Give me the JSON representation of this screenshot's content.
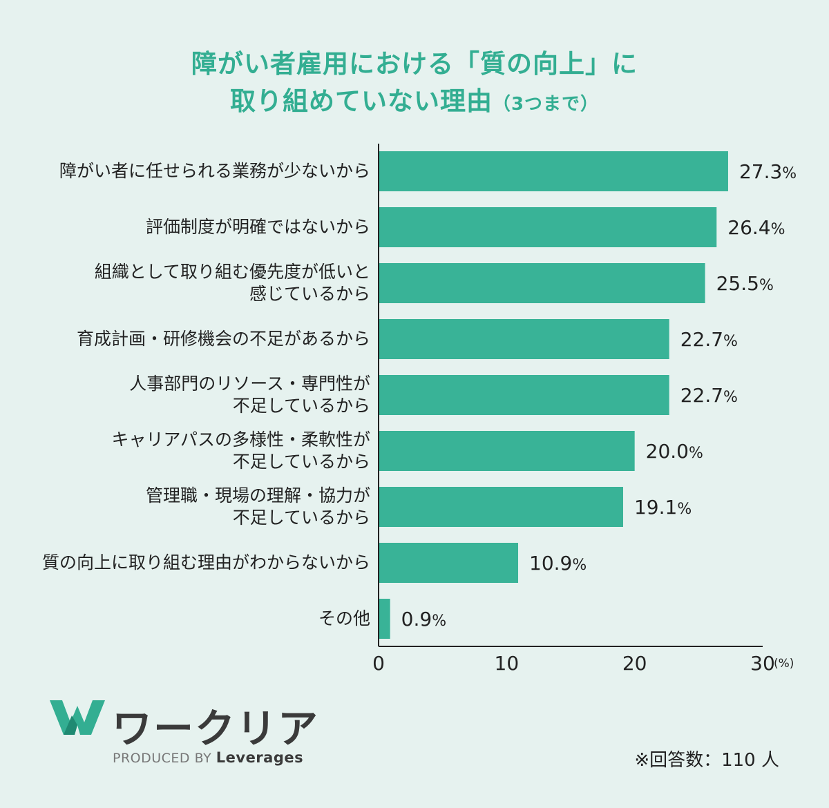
{
  "title": {
    "line1": "障がい者雇用における「質の向上」に",
    "line2": "取り組めていない理由",
    "note": "（3つまで）"
  },
  "colors": {
    "background": "#e6f2ef",
    "accent": "#33ae92",
    "bar": "#39b397",
    "text": "#222222"
  },
  "chart_data": {
    "type": "bar",
    "orientation": "horizontal",
    "categories": [
      [
        "障がい者に任せられる業務が少ないから"
      ],
      [
        "評価制度が明確ではないから"
      ],
      [
        "組織として取り組む優先度が低いと",
        "感じているから"
      ],
      [
        "育成計画・研修機会の不足があるから"
      ],
      [
        "人事部門のリソース・専門性が",
        "不足しているから"
      ],
      [
        "キャリアパスの多様性・柔軟性が",
        "不足しているから"
      ],
      [
        "管理職・現場の理解・協力が",
        "不足しているから"
      ],
      [
        "質の向上に取り組む理由がわからないから"
      ],
      [
        "その他"
      ]
    ],
    "values": [
      27.3,
      26.4,
      25.5,
      22.7,
      22.7,
      20.0,
      19.1,
      10.9,
      0.9
    ],
    "value_labels": [
      "27.3",
      "26.4",
      "25.5",
      "22.7",
      "22.7",
      "20.0",
      "19.1",
      "10.9",
      "0.9"
    ],
    "value_suffix": "%",
    "xlim": [
      0,
      30
    ],
    "xticks": [
      "0",
      "10",
      "20",
      "30"
    ],
    "x_unit": "(%)",
    "grid": false,
    "legend": "none"
  },
  "brand": {
    "name": "ワークリア",
    "produced_by": "PRODUCED BY",
    "company": "Leverages"
  },
  "footnote": "※回答数：110 人"
}
